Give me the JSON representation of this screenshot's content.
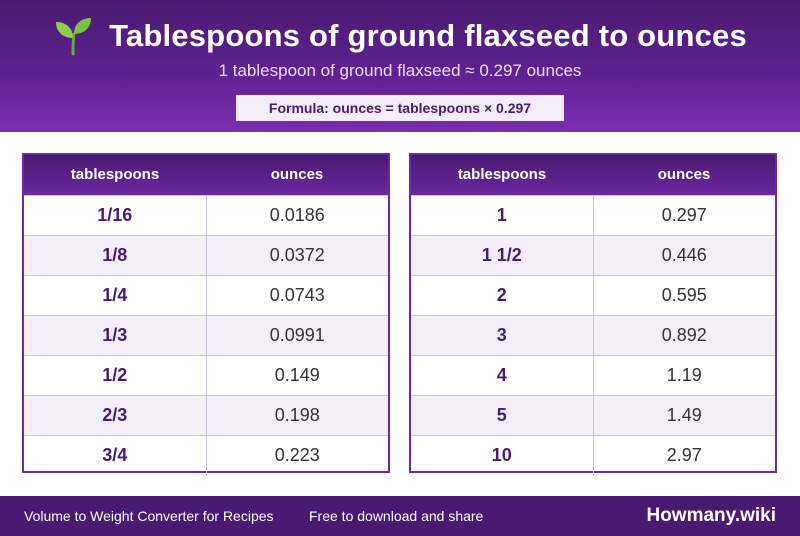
{
  "header": {
    "icon": "sprout-icon",
    "title": "Tablespoons of ground flaxseed to ounces",
    "subtitle": "1 tablespoon of ground flaxseed ≈ 0.297 ounces",
    "formula": "Formula: ounces = tablespoons × 0.297"
  },
  "tables": [
    {
      "headers": [
        "tablespoons",
        "ounces"
      ],
      "rows": [
        [
          "1/16",
          "0.0186"
        ],
        [
          "1/8",
          "0.0372"
        ],
        [
          "1/4",
          "0.0743"
        ],
        [
          "1/3",
          "0.0991"
        ],
        [
          "1/2",
          "0.149"
        ],
        [
          "2/3",
          "0.198"
        ],
        [
          "3/4",
          "0.223"
        ]
      ]
    },
    {
      "headers": [
        "tablespoons",
        "ounces"
      ],
      "rows": [
        [
          "1",
          "0.297"
        ],
        [
          "1 1/2",
          "0.446"
        ],
        [
          "2",
          "0.595"
        ],
        [
          "3",
          "0.892"
        ],
        [
          "4",
          "1.19"
        ],
        [
          "5",
          "1.49"
        ],
        [
          "10",
          "2.97"
        ]
      ]
    }
  ],
  "footer": {
    "left": "Volume to Weight Converter for Recipes",
    "middle": "Free to download and share",
    "brand": "Howmany.wiki"
  },
  "colors": {
    "primary": "#4a1a72",
    "accent": "#7a2db0",
    "row_alt": "#f3eef8",
    "sprout_green": "#7cc243"
  }
}
